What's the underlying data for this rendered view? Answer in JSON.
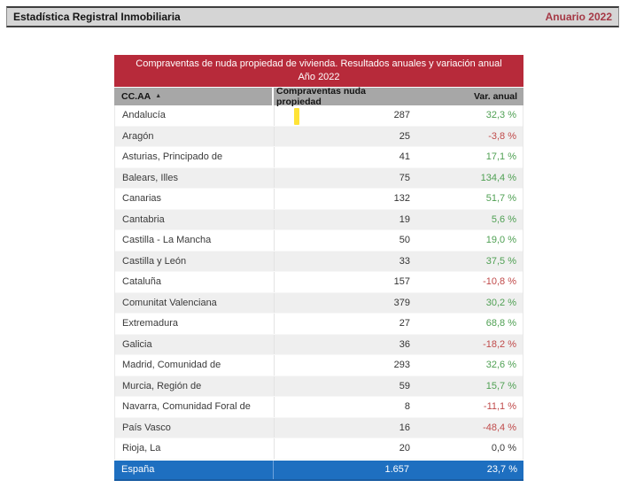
{
  "header": {
    "title": "Estadística Registral Inmobiliaria",
    "edition": "Anuario 2022"
  },
  "table": {
    "title": "Compraventas de nuda propiedad de vivienda. Resultados anuales y variación anual",
    "subtitle": "Año 2022",
    "columns": {
      "region": "CC.AA",
      "value": "Compraventas nuda propiedad",
      "variation": "Var. anual"
    },
    "sort_indicator": "▲",
    "rows": [
      {
        "region": "Andalucía",
        "value": "287",
        "variation": "32,3 %",
        "trend": "pos"
      },
      {
        "region": "Aragón",
        "value": "25",
        "variation": "-3,8 %",
        "trend": "neg"
      },
      {
        "region": "Asturias, Principado de",
        "value": "41",
        "variation": "17,1 %",
        "trend": "pos"
      },
      {
        "region": "Balears, Illes",
        "value": "75",
        "variation": "134,4 %",
        "trend": "pos"
      },
      {
        "region": "Canarias",
        "value": "132",
        "variation": "51,7 %",
        "trend": "pos"
      },
      {
        "region": "Cantabria",
        "value": "19",
        "variation": "5,6 %",
        "trend": "pos"
      },
      {
        "region": "Castilla - La Mancha",
        "value": "50",
        "variation": "19,0 %",
        "trend": "pos"
      },
      {
        "region": "Castilla y León",
        "value": "33",
        "variation": "37,5 %",
        "trend": "pos"
      },
      {
        "region": "Cataluña",
        "value": "157",
        "variation": "-10,8 %",
        "trend": "neg"
      },
      {
        "region": "Comunitat Valenciana",
        "value": "379",
        "variation": "30,2 %",
        "trend": "pos"
      },
      {
        "region": "Extremadura",
        "value": "27",
        "variation": "68,8 %",
        "trend": "pos"
      },
      {
        "region": "Galicia",
        "value": "36",
        "variation": "-18,2 %",
        "trend": "neg"
      },
      {
        "region": "Madrid, Comunidad de",
        "value": "293",
        "variation": "32,6 %",
        "trend": "pos"
      },
      {
        "region": "Murcia, Región de",
        "value": "59",
        "variation": "15,7 %",
        "trend": "pos"
      },
      {
        "region": "Navarra, Comunidad Foral de",
        "value": "8",
        "variation": "-11,1 %",
        "trend": "neg"
      },
      {
        "region": "País Vasco",
        "value": "16",
        "variation": "-48,4 %",
        "trend": "neg"
      },
      {
        "region": "Rioja, La",
        "value": "20",
        "variation": "0,0 %",
        "trend": "zero"
      }
    ],
    "total": {
      "region": "España",
      "value": "1.657",
      "variation": "23,7 %"
    }
  },
  "colors": {
    "title_bar": "#B72A3A",
    "header_row": "#A7A7A7",
    "total_row": "#1E6FC0",
    "positive": "#4FA053",
    "negative": "#C04A4A",
    "neutral": "#3A3A3A",
    "highlight_cursor": "#FFE336",
    "top_bar_bg": "#D5D5D5",
    "edition_text": "#A53845"
  }
}
